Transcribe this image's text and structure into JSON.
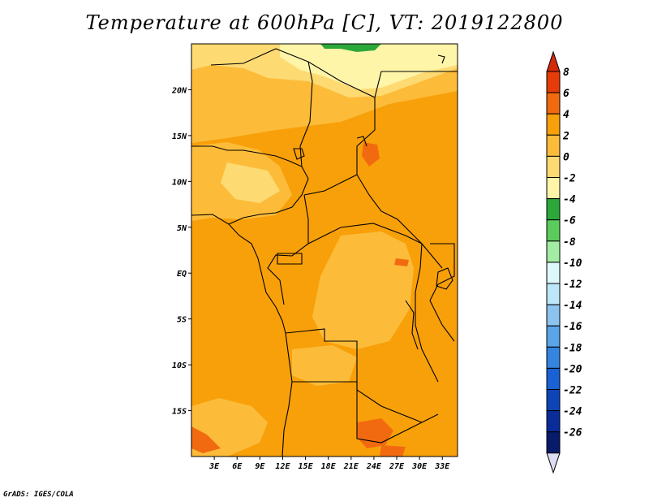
{
  "title": "Temperature at 600hPa [C], VT: 2019122800",
  "credit": "GrADS: IGES/COLA",
  "map": {
    "lon_range": [
      0,
      35
    ],
    "lat_range": [
      -20,
      25
    ],
    "x_ticks": [
      {
        "lon": 3,
        "label": "3E"
      },
      {
        "lon": 6,
        "label": "6E"
      },
      {
        "lon": 9,
        "label": "9E"
      },
      {
        "lon": 12,
        "label": "12E"
      },
      {
        "lon": 15,
        "label": "15E"
      },
      {
        "lon": 18,
        "label": "18E"
      },
      {
        "lon": 21,
        "label": "21E"
      },
      {
        "lon": 24,
        "label": "24E"
      },
      {
        "lon": 27,
        "label": "27E"
      },
      {
        "lon": 30,
        "label": "30E"
      },
      {
        "lon": 33,
        "label": "33E"
      }
    ],
    "y_ticks": [
      {
        "lat": 20,
        "label": "20N"
      },
      {
        "lat": 15,
        "label": "15N"
      },
      {
        "lat": 10,
        "label": "10N"
      },
      {
        "lat": 5,
        "label": "5N"
      },
      {
        "lat": 0,
        "label": "EQ"
      },
      {
        "lat": -5,
        "label": "5S"
      },
      {
        "lat": -10,
        "label": "10S"
      },
      {
        "lat": -15,
        "label": "15S"
      }
    ]
  },
  "colorbar": {
    "levels": [
      "8",
      "6",
      "4",
      "2",
      "0",
      "-2",
      "-4",
      "-6",
      "-8",
      "-10",
      "-12",
      "-14",
      "-16",
      "-18",
      "-20",
      "-22",
      "-24",
      "-26"
    ],
    "colors": [
      "#e63c0a",
      "#f26a10",
      "#f8a00a",
      "#fcbc3a",
      "#fdda72",
      "#fff5a8",
      "#2ca83a",
      "#5bcc5b",
      "#a3eca3",
      "#ddf8f8",
      "#bde6f8",
      "#8cc4f0",
      "#5aa4e8",
      "#3484e0",
      "#1a62d4",
      "#0e44b8",
      "#0a2c9a",
      "#081a6a"
    ],
    "top_color": "#d42a0a",
    "bottom_color": "#dcdcf4"
  }
}
